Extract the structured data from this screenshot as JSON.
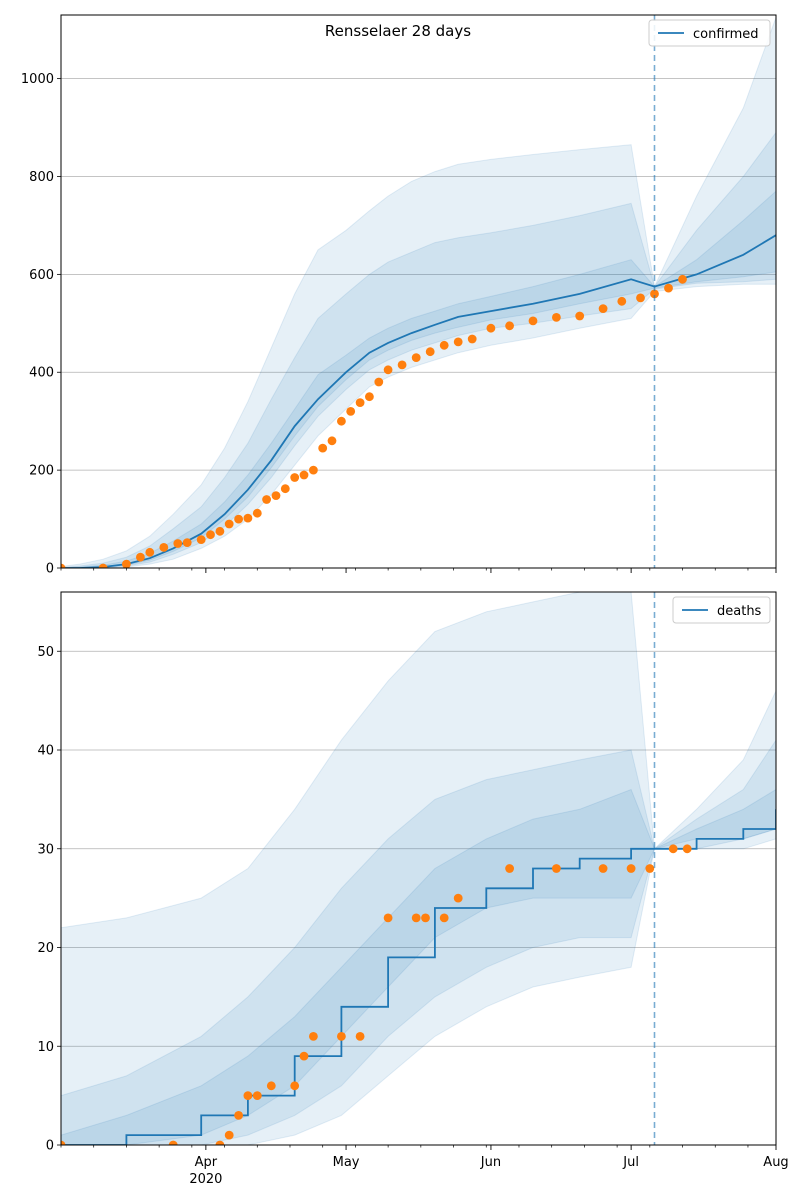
{
  "figure": {
    "title": "Rensselaer 28 days"
  },
  "chart_data": [
    {
      "type": "line",
      "legend": {
        "label": "confirmed",
        "placement": "top-right"
      },
      "ylim": [
        0,
        1130
      ],
      "yticks": [
        0,
        200,
        400,
        600,
        800,
        1000
      ],
      "grid": "y",
      "colors": {
        "line": "#1f77b4",
        "observed": "#ff7f0e",
        "band": "#1f77b4"
      },
      "vline_date": "2020-07-06",
      "fit_x": [
        "2020-03-01",
        "2020-03-05",
        "2020-03-10",
        "2020-03-15",
        "2020-03-20",
        "2020-03-25",
        "2020-03-31",
        "2020-04-05",
        "2020-04-10",
        "2020-04-15",
        "2020-04-20",
        "2020-04-25",
        "2020-05-01",
        "2020-05-06",
        "2020-05-10",
        "2020-05-15",
        "2020-05-20",
        "2020-05-25",
        "2020-06-01",
        "2020-06-10",
        "2020-06-20",
        "2020-07-01",
        "2020-07-06",
        "2020-07-15",
        "2020-07-25",
        "2020-08-01"
      ],
      "fit_y": [
        0,
        0,
        2,
        8,
        20,
        40,
        70,
        110,
        160,
        220,
        290,
        345,
        400,
        440,
        460,
        480,
        497,
        513,
        525,
        540,
        560,
        590,
        575,
        600,
        640,
        680
      ],
      "bands": [
        {
          "lower": [
            0,
            0,
            0,
            2,
            8,
            18,
            40,
            65,
            100,
            150,
            210,
            270,
            325,
            370,
            390,
            410,
            425,
            440,
            455,
            470,
            490,
            510,
            565,
            575,
            580,
            580
          ],
          "upper": [
            3,
            8,
            18,
            35,
            65,
            110,
            170,
            245,
            340,
            450,
            560,
            650,
            690,
            730,
            760,
            790,
            810,
            825,
            835,
            845,
            855,
            865,
            575,
            760,
            940,
            1125
          ]
        },
        {
          "lower": [
            0,
            0,
            1,
            4,
            12,
            28,
            52,
            85,
            130,
            185,
            250,
            310,
            365,
            405,
            425,
            445,
            460,
            475,
            490,
            500,
            515,
            530,
            570,
            582,
            585,
            590
          ],
          "upper": [
            1,
            4,
            10,
            22,
            45,
            80,
            125,
            185,
            255,
            345,
            430,
            510,
            560,
            600,
            625,
            645,
            665,
            675,
            685,
            700,
            720,
            745,
            575,
            690,
            800,
            890
          ]
        },
        {
          "lower": [
            0,
            0,
            1,
            6,
            16,
            34,
            62,
            100,
            145,
            205,
            270,
            330,
            385,
            425,
            445,
            465,
            480,
            492,
            507,
            520,
            540,
            560,
            572,
            585,
            595,
            605
          ],
          "upper": [
            0,
            2,
            6,
            14,
            30,
            55,
            90,
            135,
            190,
            255,
            325,
            395,
            435,
            470,
            490,
            510,
            525,
            540,
            555,
            575,
            600,
            630,
            575,
            630,
            710,
            770
          ]
        }
      ],
      "obs_x": [
        "2020-03-01",
        "2020-03-10",
        "2020-03-15",
        "2020-03-18",
        "2020-03-20",
        "2020-03-23",
        "2020-03-26",
        "2020-03-28",
        "2020-03-31",
        "2020-04-02",
        "2020-04-04",
        "2020-04-06",
        "2020-04-08",
        "2020-04-10",
        "2020-04-12",
        "2020-04-14",
        "2020-04-16",
        "2020-04-18",
        "2020-04-20",
        "2020-04-22",
        "2020-04-24",
        "2020-04-26",
        "2020-04-28",
        "2020-04-30",
        "2020-05-02",
        "2020-05-04",
        "2020-05-06",
        "2020-05-08",
        "2020-05-10",
        "2020-05-13",
        "2020-05-16",
        "2020-05-19",
        "2020-05-22",
        "2020-05-25",
        "2020-05-28",
        "2020-06-01",
        "2020-06-05",
        "2020-06-10",
        "2020-06-15",
        "2020-06-20",
        "2020-06-25",
        "2020-06-29",
        "2020-07-03",
        "2020-07-06",
        "2020-07-09",
        "2020-07-12"
      ],
      "obs_y": [
        0,
        0,
        8,
        22,
        32,
        42,
        50,
        52,
        58,
        68,
        75,
        90,
        100,
        102,
        112,
        140,
        148,
        162,
        185,
        190,
        200,
        245,
        260,
        300,
        320,
        338,
        350,
        380,
        405,
        415,
        430,
        442,
        455,
        462,
        468,
        490,
        495,
        505,
        512,
        515,
        530,
        545,
        552,
        560,
        572,
        590
      ]
    },
    {
      "type": "line",
      "legend": {
        "label": "deaths",
        "placement": "top-right"
      },
      "ylim": [
        0,
        56
      ],
      "yticks": [
        0,
        10,
        20,
        30,
        40,
        50
      ],
      "grid": "y",
      "colors": {
        "line": "#1f77b4",
        "observed": "#ff7f0e",
        "band": "#1f77b4"
      },
      "vline_date": "2020-07-06",
      "fit_x": [
        "2020-03-01",
        "2020-03-15",
        "2020-03-31",
        "2020-04-10",
        "2020-04-20",
        "2020-04-30",
        "2020-05-10",
        "2020-05-20",
        "2020-05-31",
        "2020-06-10",
        "2020-06-20",
        "2020-07-01",
        "2020-07-06",
        "2020-07-15",
        "2020-07-25",
        "2020-08-01"
      ],
      "fit_y": [
        0,
        1,
        3,
        5,
        9,
        14,
        19,
        24,
        26,
        28,
        29,
        30,
        30,
        31,
        32,
        34
      ],
      "bands": [
        {
          "lower": [
            0,
            0,
            0,
            0,
            1,
            3,
            7,
            11,
            14,
            16,
            17,
            18,
            30,
            30,
            30,
            31
          ],
          "upper": [
            22,
            23,
            25,
            28,
            34,
            41,
            47,
            52,
            54,
            55,
            56,
            56,
            30,
            34,
            39,
            46
          ]
        },
        {
          "lower": [
            0,
            0,
            0,
            1,
            3,
            6,
            11,
            15,
            18,
            20,
            21,
            21,
            30,
            30,
            31,
            32
          ],
          "upper": [
            5,
            7,
            11,
            15,
            20,
            26,
            31,
            35,
            37,
            38,
            39,
            40,
            30,
            33,
            36,
            41
          ]
        },
        {
          "lower": [
            0,
            0,
            1,
            3,
            6,
            11,
            16,
            21,
            24,
            25,
            25,
            25,
            30,
            31,
            31,
            32
          ],
          "upper": [
            1,
            3,
            6,
            9,
            13,
            18,
            23,
            28,
            31,
            33,
            34,
            36,
            30,
            32,
            34,
            36
          ]
        }
      ],
      "obs_x": [
        "2020-03-01",
        "2020-03-25",
        "2020-04-04",
        "2020-04-06",
        "2020-04-08",
        "2020-04-10",
        "2020-04-12",
        "2020-04-15",
        "2020-04-20",
        "2020-04-22",
        "2020-04-24",
        "2020-04-30",
        "2020-05-04",
        "2020-05-10",
        "2020-05-16",
        "2020-05-18",
        "2020-05-22",
        "2020-05-25",
        "2020-06-05",
        "2020-06-15",
        "2020-06-25",
        "2020-07-01",
        "2020-07-05",
        "2020-07-10",
        "2020-07-13"
      ],
      "obs_y": [
        0,
        0,
        0,
        1,
        3,
        5,
        5,
        6,
        6,
        9,
        11,
        11,
        11,
        23,
        23,
        23,
        23,
        25,
        28,
        28,
        28,
        28,
        28,
        30,
        30
      ]
    }
  ],
  "x_axis": {
    "start": "2020-03-01",
    "end": "2020-08-01",
    "major_ticks": [
      {
        "date": "2020-04-01",
        "label": "Apr",
        "sublabel": "2020"
      },
      {
        "date": "2020-05-01",
        "label": "May",
        "sublabel": ""
      },
      {
        "date": "2020-06-01",
        "label": "Jun",
        "sublabel": ""
      },
      {
        "date": "2020-07-01",
        "label": "Jul",
        "sublabel": ""
      },
      {
        "date": "2020-08-01",
        "label": "Aug",
        "sublabel": ""
      }
    ]
  }
}
